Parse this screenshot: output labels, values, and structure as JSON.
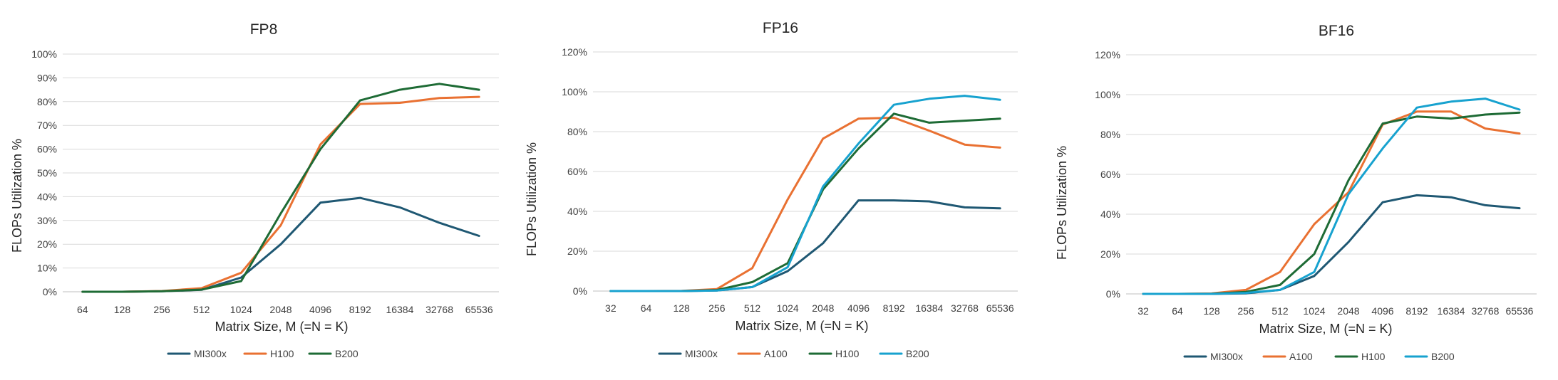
{
  "chart_data": [
    {
      "type": "line",
      "title": "FP8",
      "xlabel": "Matrix Size, M (=N = K)",
      "ylabel": "FLOPs Utilization %",
      "categories": [
        "64",
        "128",
        "256",
        "512",
        "1024",
        "2048",
        "4096",
        "8192",
        "16384",
        "32768",
        "65536"
      ],
      "yticks": [
        "0%",
        "10%",
        "20%",
        "30%",
        "40%",
        "50%",
        "60%",
        "70%",
        "80%",
        "90%",
        "100%"
      ],
      "ylim": [
        0,
        100
      ],
      "grid": true,
      "legend_position": "bottom",
      "series": [
        {
          "name": "MI300x",
          "color": "#1f5873",
          "values": [
            0,
            0,
            0.2,
            0.8,
            6,
            20,
            37.5,
            39.5,
            35.5,
            29,
            23.5
          ]
        },
        {
          "name": "H100",
          "color": "#e97132",
          "values": [
            0,
            0,
            0.3,
            1.5,
            8,
            28,
            62,
            79,
            79.5,
            81.5,
            82
          ]
        },
        {
          "name": "B200",
          "color": "#1e6b35",
          "values": [
            0,
            0,
            0.2,
            0.9,
            4.5,
            33,
            60,
            80.5,
            85,
            87.5,
            85
          ]
        }
      ]
    },
    {
      "type": "line",
      "title": "FP16",
      "xlabel": "Matrix Size, M (=N = K)",
      "ylabel": "FLOPs Utilization %",
      "categories": [
        "32",
        "64",
        "128",
        "256",
        "512",
        "1024",
        "2048",
        "4096",
        "8192",
        "16384",
        "32768",
        "65536"
      ],
      "yticks": [
        "0%",
        "20%",
        "40%",
        "60%",
        "80%",
        "100%",
        "120%"
      ],
      "ylim": [
        0,
        120
      ],
      "grid": true,
      "legend_position": "bottom",
      "series": [
        {
          "name": "MI300x",
          "color": "#1f5873",
          "values": [
            0,
            0,
            0,
            0.3,
            2,
            10,
            24,
            45.5,
            45.5,
            45,
            42,
            41.5
          ]
        },
        {
          "name": "A100",
          "color": "#e97132",
          "values": [
            0,
            0,
            0.1,
            1,
            11.5,
            46,
            76.5,
            86.5,
            87,
            80.5,
            73.5,
            72
          ]
        },
        {
          "name": "H100",
          "color": "#1e6b35",
          "values": [
            0,
            0,
            0,
            0.5,
            4.5,
            14,
            51,
            71.5,
            89,
            84.5,
            85.5,
            86.5
          ]
        },
        {
          "name": "B200",
          "color": "#17a2cf",
          "values": [
            0,
            0,
            0,
            0.3,
            2,
            12,
            52.5,
            74,
            93.5,
            96.5,
            98,
            96
          ]
        }
      ]
    },
    {
      "type": "line",
      "title": "BF16",
      "xlabel": "Matrix Size, M (=N = K)",
      "ylabel": "FLOPs Utilization %",
      "categories": [
        "32",
        "64",
        "128",
        "256",
        "512",
        "1024",
        "2048",
        "4096",
        "8192",
        "16384",
        "32768",
        "65536"
      ],
      "yticks": [
        "0%",
        "20%",
        "40%",
        "60%",
        "80%",
        "100%",
        "120%"
      ],
      "ylim": [
        0,
        120
      ],
      "grid": true,
      "legend_position": "bottom",
      "series": [
        {
          "name": "MI300x",
          "color": "#1f5873",
          "values": [
            0,
            0,
            0,
            0.3,
            2,
            9,
            26,
            46,
            49.5,
            48.5,
            44.5,
            43
          ]
        },
        {
          "name": "A100",
          "color": "#e97132",
          "values": [
            0,
            0,
            0.2,
            2,
            11,
            35,
            51,
            85,
            91.5,
            91.5,
            83,
            80.5
          ]
        },
        {
          "name": "H100",
          "color": "#1e6b35",
          "values": [
            0,
            0,
            0.1,
            1,
            4.5,
            20,
            57,
            85.5,
            89,
            88,
            90,
            91
          ]
        },
        {
          "name": "B200",
          "color": "#17a2cf",
          "values": [
            0,
            0,
            0,
            0.5,
            2,
            11,
            50,
            73,
            93.5,
            96.5,
            98,
            92.5
          ]
        }
      ]
    }
  ]
}
